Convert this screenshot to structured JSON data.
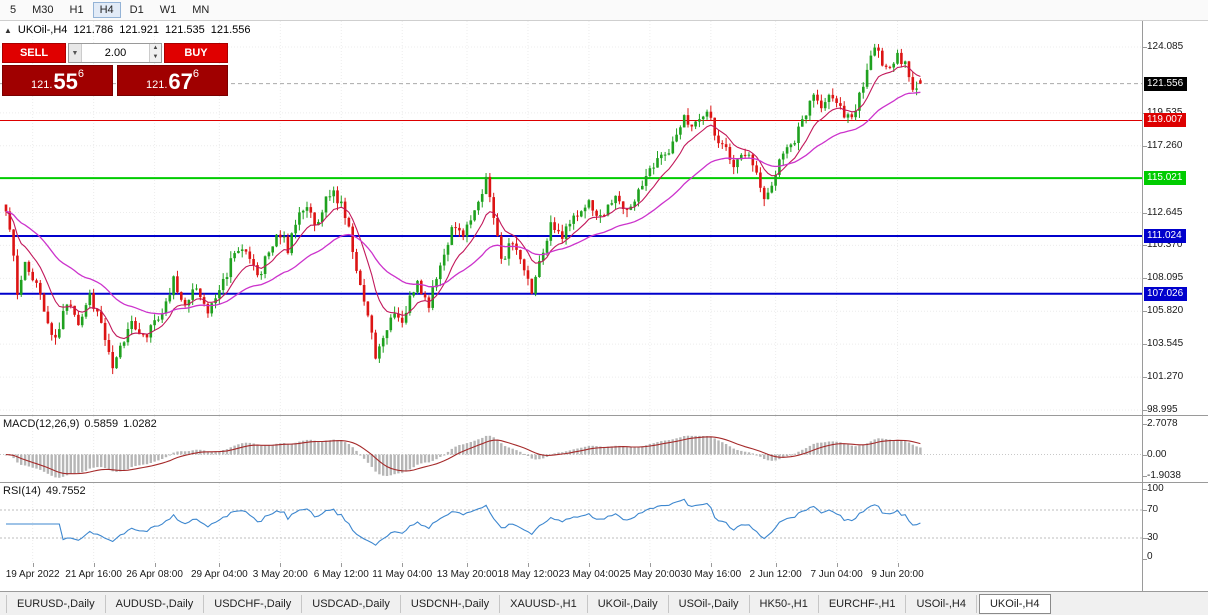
{
  "icons": {
    "collapse": "▲",
    "volume_dropdown": "▼",
    "spin_up": "▲",
    "spin_down": "▼"
  },
  "colors": {
    "up": "#1fa11f",
    "down": "#dc1414",
    "ma_fast": "#c2185b",
    "ma_slow": "#cc33cc",
    "macd_hist": "#b6b6b6",
    "macd_signal": "#a52a2a",
    "rsi_line": "#3d87cf",
    "sell_buy_button": "#e00000",
    "price_panel": "#a00000"
  },
  "toolbar": {
    "timeframes": [
      "5",
      "M30",
      "H1",
      "H4",
      "D1",
      "W1",
      "MN"
    ],
    "active": "H4"
  },
  "chart": {
    "symbol_label": "UKOil-,H4",
    "open": "121.786",
    "high": "121.921",
    "low": "121.535",
    "close": "121.556"
  },
  "trade_panel": {
    "sell_label": "SELL",
    "buy_label": "BUY",
    "volume": "2.00",
    "sell_price": {
      "prefix": "121.",
      "big": "55",
      "sup": "6"
    },
    "buy_price": {
      "prefix": "121.",
      "big": "67",
      "sup": "6"
    }
  },
  "macd": {
    "name": "MACD(12,26,9)",
    "main_value": "0.5859",
    "signal_value": "1.0282",
    "axis": [
      "2.7078",
      "0.00",
      "-1.9038"
    ],
    "fast": 12,
    "slow": 26,
    "smooth": 9
  },
  "rsi": {
    "name": "RSI(14)",
    "value": "49.7552",
    "axis": [
      "100",
      "70",
      "30",
      "0"
    ],
    "levels": [
      70,
      30
    ],
    "period": 14
  },
  "tabs": {
    "items": [
      "EURUSD-,Daily",
      "AUDUSD-,Daily",
      "USDCHF-,Daily",
      "USDCAD-,Daily",
      "USDCNH-,Daily",
      "XAUUSD-,H1",
      "UKOil-,Daily",
      "USOil-,Daily",
      "HK50-,H1",
      "EURCHF-,H1",
      "USOil-,H4",
      "UKOil-,H4"
    ],
    "active": "UKOil-,H4"
  },
  "chart_data": {
    "type": "candlestick",
    "symbol": "UKOil-",
    "timeframe": "H4",
    "last_candle": {
      "open": 121.786,
      "high": 121.921,
      "low": 121.535,
      "close": 121.556
    },
    "num_candles": 241,
    "y_axis_ticks": [
      "124.085",
      "119.535",
      "117.260",
      "112.645",
      "110.370",
      "108.095",
      "105.820",
      "103.545",
      "101.270",
      "98.995"
    ],
    "x_axis_ticks": [
      "19 Apr 2022",
      "21 Apr 16:00",
      "26 Apr 08:00",
      "29 Apr 04:00",
      "3 May 20:00",
      "6 May 12:00",
      "11 May 04:00",
      "13 May 20:00",
      "18 May 12:00",
      "23 May 04:00",
      "25 May 20:00",
      "30 May 16:00",
      "2 Jun 12:00",
      "7 Jun 04:00",
      "9 Jun 20:00"
    ],
    "horizontal_levels": [
      {
        "price": 121.556,
        "type": "current-bid",
        "color": "#000000"
      },
      {
        "price": 119.007,
        "type": "line",
        "color": "#dd0000",
        "width": 1
      },
      {
        "price": 115.021,
        "type": "line",
        "color": "#00cc00",
        "width": 2
      },
      {
        "price": 111.024,
        "type": "line",
        "color": "#0000cc",
        "width": 2
      },
      {
        "price": 107.026,
        "type": "line",
        "color": "#0000cc",
        "width": 2
      }
    ],
    "price_swings": [
      [
        0,
        112.9
      ],
      [
        2,
        109.6
      ],
      [
        3,
        107.3
      ],
      [
        5,
        108.9
      ],
      [
        8,
        107.6
      ],
      [
        12,
        103.9
      ],
      [
        14,
        104.8
      ],
      [
        16,
        106.4
      ],
      [
        19,
        105.1
      ],
      [
        22,
        106.9
      ],
      [
        25,
        104.9
      ],
      [
        28,
        101.9
      ],
      [
        30,
        103.4
      ],
      [
        33,
        104.9
      ],
      [
        36,
        103.9
      ],
      [
        40,
        105.3
      ],
      [
        44,
        107.9
      ],
      [
        47,
        106.4
      ],
      [
        50,
        107.4
      ],
      [
        53,
        105.9
      ],
      [
        56,
        107.1
      ],
      [
        59,
        109.2
      ],
      [
        62,
        110.4
      ],
      [
        64,
        109.4
      ],
      [
        66,
        108.1
      ],
      [
        69,
        109.9
      ],
      [
        72,
        111.2
      ],
      [
        74,
        110.1
      ],
      [
        77,
        112.4
      ],
      [
        79,
        113.2
      ],
      [
        81,
        111.7
      ],
      [
        84,
        113.4
      ],
      [
        86,
        114.1
      ],
      [
        88,
        113.1
      ],
      [
        90,
        111.4
      ],
      [
        92,
        108.9
      ],
      [
        95,
        105.4
      ],
      [
        97,
        102.6
      ],
      [
        99,
        103.9
      ],
      [
        101,
        105.6
      ],
      [
        104,
        105.1
      ],
      [
        106,
        106.6
      ],
      [
        108,
        107.7
      ],
      [
        111,
        106.3
      ],
      [
        114,
        108.9
      ],
      [
        117,
        111.6
      ],
      [
        120,
        111.3
      ],
      [
        123,
        112.9
      ],
      [
        126,
        114.8
      ],
      [
        128,
        112.4
      ],
      [
        130,
        109.3
      ],
      [
        133,
        110.7
      ],
      [
        136,
        108.8
      ],
      [
        138,
        106.9
      ],
      [
        140,
        109.4
      ],
      [
        143,
        111.8
      ],
      [
        146,
        111.1
      ],
      [
        149,
        112.1
      ],
      [
        153,
        113.4
      ],
      [
        156,
        112.2
      ],
      [
        158,
        113.3
      ],
      [
        160,
        113.9
      ],
      [
        163,
        112.7
      ],
      [
        166,
        114.2
      ],
      [
        169,
        115.5
      ],
      [
        172,
        116.4
      ],
      [
        174,
        116.9
      ],
      [
        176,
        118.1
      ],
      [
        178,
        119.3
      ],
      [
        180,
        118.4
      ],
      [
        182,
        119.1
      ],
      [
        184,
        119.7
      ],
      [
        186,
        118.3
      ],
      [
        188,
        117.2
      ],
      [
        191,
        116.1
      ],
      [
        193,
        116.8
      ],
      [
        195,
        116.9
      ],
      [
        197,
        115.3
      ],
      [
        199,
        113.4
      ],
      [
        201,
        114.6
      ],
      [
        203,
        116.4
      ],
      [
        205,
        117.1
      ],
      [
        207,
        117.7
      ],
      [
        209,
        118.9
      ],
      [
        212,
        120.9
      ],
      [
        214,
        120.1
      ],
      [
        216,
        120.7
      ],
      [
        218,
        120.2
      ],
      [
        220,
        119.3
      ],
      [
        222,
        119.1
      ],
      [
        224,
        120.9
      ],
      [
        226,
        122.4
      ],
      [
        228,
        123.9
      ],
      [
        230,
        123.1
      ],
      [
        232,
        122.7
      ],
      [
        234,
        123.6
      ],
      [
        236,
        122.9
      ],
      [
        238,
        120.9
      ],
      [
        240,
        121.556
      ]
    ],
    "indicators": {
      "macd": {
        "label": "MACD(12,26,9)",
        "main": 0.5859,
        "signal": 1.0282,
        "scale_max": 2.7078,
        "scale_min": -1.9038
      },
      "rsi": {
        "label": "RSI(14)",
        "value": 49.7552,
        "scale": [
          0,
          100
        ],
        "levels": [
          30,
          70
        ]
      }
    }
  }
}
